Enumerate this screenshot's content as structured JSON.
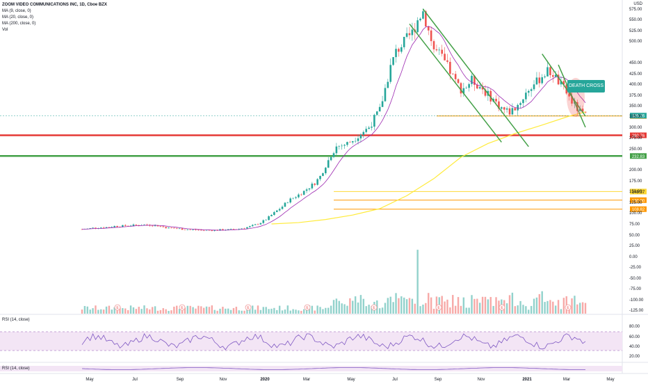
{
  "legend": {
    "title": "ZOOM VIDEO COMMUNICATIONS INC, 1D, Cboe BZX",
    "ma9": "MA (9, close, 0)",
    "ma20": "MA (20, close, 0)",
    "ma200": "MA (200, close, 0)",
    "vol": "Vol",
    "rsi1": "RSI (14, close)",
    "rsi2": "RSI (14, close)"
  },
  "currency": "USD",
  "callout": "DEATH CROSS",
  "colors": {
    "up": "#26a69a",
    "down": "#ef5350",
    "ma9": "#9c27b0",
    "ma200": "#ffeb3b",
    "support_red": "#e53935",
    "support_green": "#43a047",
    "orange": "#ff9800",
    "yellow_line": "#fdd835",
    "rsi": "#7e57c2",
    "rsi_band": "#f3e5f5"
  },
  "chart_data": {
    "type": "candlestick",
    "symbol": "ZM",
    "price_axis_ticks": [
      75,
      100,
      125,
      150,
      175,
      200,
      250,
      275,
      300,
      325,
      350,
      375,
      400,
      425,
      450,
      500,
      525,
      550,
      575
    ],
    "volume_axis_ticks": [
      "50.00",
      "25.00",
      "0.00",
      "-25.00",
      "-50.00",
      "-75.00",
      "-100.00",
      "-125.00"
    ],
    "rsi_axis_ticks": [
      "80.00",
      "60.00",
      "40.00",
      "20.00"
    ],
    "x_ticks": [
      "May",
      "Jul",
      "Sep",
      "Nov",
      "2020",
      "Mar",
      "May",
      "Jul",
      "Sep",
      "Nov",
      "2021",
      "Mar",
      "May"
    ],
    "price_path": [
      [
        0,
        63
      ],
      [
        2,
        64
      ],
      [
        4,
        66
      ],
      [
        6,
        67
      ],
      [
        8,
        67
      ],
      [
        10,
        68
      ],
      [
        12,
        70
      ],
      [
        14,
        70
      ],
      [
        16,
        71
      ],
      [
        18,
        72
      ],
      [
        20,
        72
      ],
      [
        22,
        73
      ],
      [
        24,
        73
      ],
      [
        26,
        72
      ],
      [
        28,
        71
      ],
      [
        30,
        68
      ],
      [
        32,
        66
      ],
      [
        34,
        65
      ],
      [
        36,
        64
      ],
      [
        38,
        63
      ],
      [
        40,
        62
      ],
      [
        42,
        62
      ],
      [
        44,
        61
      ],
      [
        46,
        61
      ],
      [
        48,
        61
      ],
      [
        50,
        61
      ],
      [
        52,
        62
      ],
      [
        54,
        62
      ],
      [
        56,
        63
      ],
      [
        58,
        64
      ],
      [
        60,
        66
      ],
      [
        62,
        69
      ],
      [
        64,
        73
      ],
      [
        66,
        78
      ],
      [
        68,
        85
      ],
      [
        70,
        95
      ],
      [
        72,
        105
      ],
      [
        74,
        115
      ],
      [
        76,
        128
      ],
      [
        78,
        135
      ],
      [
        80,
        142
      ],
      [
        82,
        150
      ],
      [
        84,
        160
      ],
      [
        86,
        170
      ],
      [
        88,
        185
      ],
      [
        90,
        210
      ],
      [
        92,
        235
      ],
      [
        94,
        255
      ],
      [
        96,
        258
      ],
      [
        98,
        262
      ],
      [
        100,
        270
      ],
      [
        102,
        280
      ],
      [
        104,
        290
      ],
      [
        106,
        300
      ],
      [
        108,
        320
      ],
      [
        110,
        340
      ],
      [
        112,
        390
      ],
      [
        114,
        440
      ],
      [
        116,
        475
      ],
      [
        118,
        490
      ],
      [
        120,
        505
      ],
      [
        122,
        520
      ],
      [
        124,
        550
      ],
      [
        126,
        570
      ],
      [
        128,
        525
      ],
      [
        130,
        480
      ],
      [
        132,
        470
      ],
      [
        134,
        450
      ],
      [
        136,
        430
      ],
      [
        138,
        405
      ],
      [
        140,
        390
      ],
      [
        142,
        395
      ],
      [
        144,
        410
      ],
      [
        146,
        400
      ],
      [
        148,
        390
      ],
      [
        150,
        375
      ],
      [
        152,
        365
      ],
      [
        154,
        350
      ],
      [
        156,
        340
      ],
      [
        158,
        335
      ],
      [
        160,
        345
      ],
      [
        162,
        360
      ],
      [
        164,
        380
      ],
      [
        166,
        395
      ],
      [
        168,
        405
      ],
      [
        170,
        420
      ],
      [
        172,
        430
      ],
      [
        174,
        425
      ],
      [
        176,
        405
      ],
      [
        178,
        390
      ],
      [
        180,
        370
      ],
      [
        182,
        350
      ],
      [
        184,
        335
      ],
      [
        186,
        326
      ]
    ],
    "last_price": "326.26",
    "price_labels": [
      "325.47",
      "280.76",
      "232.83",
      "149.37",
      "130.00",
      "108.82"
    ],
    "horizontal_levels": [
      {
        "price": 325.47,
        "color": "orange",
        "label": "325.47"
      },
      {
        "price": 280.76,
        "color": "red",
        "label": "280.76"
      },
      {
        "price": 232.83,
        "color": "green",
        "label": "232.83"
      },
      {
        "price": 149.37,
        "color": "yellow",
        "label": "149.37"
      },
      {
        "price": 130.0,
        "color": "orange",
        "label": "130.00"
      },
      {
        "price": 108.82,
        "color": "orange",
        "label": "108.82"
      }
    ],
    "ma200_path": [
      [
        70,
        75
      ],
      [
        80,
        78
      ],
      [
        90,
        85
      ],
      [
        100,
        95
      ],
      [
        110,
        110
      ],
      [
        120,
        140
      ],
      [
        130,
        180
      ],
      [
        140,
        230
      ],
      [
        150,
        262
      ],
      [
        160,
        285
      ],
      [
        170,
        305
      ],
      [
        180,
        325
      ],
      [
        186,
        335
      ]
    ],
    "annotations": [
      "DEATH CROSS"
    ]
  }
}
